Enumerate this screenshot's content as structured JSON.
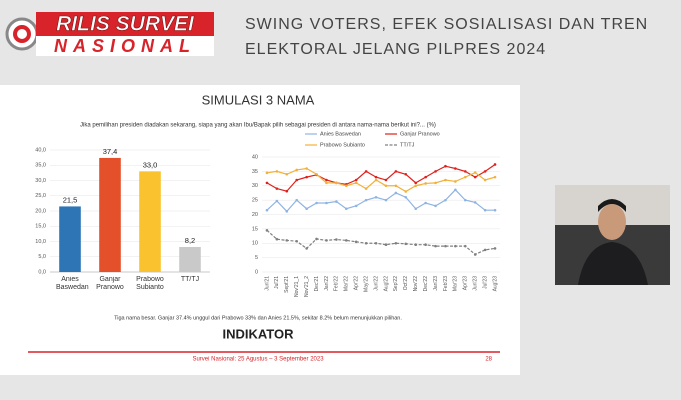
{
  "header": {
    "logo_top": "RILIS SURVEI",
    "logo_bottom": "NASIONAL",
    "title_line1": "SWING VOTERS, EFEK SOSIALISASI DAN TREN",
    "title_line2": "ELEKTORAL JELANG PILPRES 2024"
  },
  "slide": {
    "title": "SIMULASI 3 NAMA",
    "question": "Jika pemilihan presiden diadakan sekarang, siapa yang akan Ibu/Bapak pilih sebagai presiden di antara nama-nama berikut ini?... (%)",
    "note": "Tiga nama besar. Ganjar 37.4% unggul dari Prabowo 33% dan Anies 21.5%, sekitar 8.2% belum menunjukkan pilihan.",
    "brand": "INDIKATOR",
    "footer": "Survei Nasional: 25 Agustus – 3 September 2023",
    "page": "28"
  },
  "chart_data": [
    {
      "type": "bar",
      "categories": [
        "Anies Baswedan",
        "Ganjar Pranowo",
        "Prabowo Subianto",
        "TT/TJ"
      ],
      "values": [
        21.5,
        37.4,
        33.0,
        8.2
      ],
      "value_labels": [
        "21,5",
        "37,4",
        "33,0",
        "8,2"
      ],
      "colors": [
        "#2e75b6",
        "#e3502a",
        "#f9c22e",
        "#c9c9c9"
      ],
      "ylim": [
        0,
        40
      ],
      "yticks": [
        {
          "value": 0,
          "label": "0,0"
        },
        {
          "value": 5,
          "label": "5,0"
        },
        {
          "value": 10,
          "label": "10,0"
        },
        {
          "value": 15,
          "label": "15,0"
        },
        {
          "value": 20,
          "label": "20,0"
        },
        {
          "value": 25,
          "label": "25,0"
        },
        {
          "value": 30,
          "label": "30,0"
        },
        {
          "value": 35,
          "label": "35,0"
        },
        {
          "value": 40,
          "label": "40,0"
        }
      ]
    },
    {
      "type": "line",
      "categories": [
        "Jun'21",
        "Jul'21",
        "Sept'21",
        "Nov'21_1",
        "Nov'21_2",
        "Dec'21",
        "Jan'22",
        "Feb'22",
        "Mar'22",
        "Apr'22",
        "May'22",
        "Jun'22",
        "Aug'22",
        "Sep'22",
        "Oct'22",
        "Nov'22",
        "Dec'22",
        "Jan'23",
        "Feb'23",
        "Mar'23",
        "Apr'23",
        "Jun'23",
        "Jul'23",
        "Aug'23"
      ],
      "series": [
        {
          "name": "Anies Baswedan",
          "color": "#8fb4e3",
          "values": [
            21.5,
            24.7,
            21.1,
            25,
            22,
            24,
            24,
            24.5,
            22,
            23,
            25,
            26,
            25,
            27.5,
            26,
            22,
            24,
            23,
            25,
            28.6,
            25,
            24.2,
            21.5,
            21.5
          ]
        },
        {
          "name": "Ganjar Pranowo",
          "color": "#e0201b",
          "values": [
            31,
            29,
            28.1,
            32,
            33,
            33.8,
            32,
            31,
            30.5,
            32,
            35,
            33,
            32,
            35,
            34,
            31,
            33,
            35,
            36.8,
            36,
            35,
            33,
            35,
            37.4
          ]
        },
        {
          "name": "Prabowo Subianto",
          "color": "#f2b13a",
          "values": [
            34.5,
            35,
            34,
            35.5,
            36,
            34,
            31,
            31,
            30,
            31,
            29,
            32,
            30,
            30,
            28,
            30,
            30.8,
            31,
            32,
            31.5,
            33,
            34.6,
            32,
            33.0
          ]
        },
        {
          "name": "TT/TJ",
          "color": "#808080",
          "dashed": true,
          "values": [
            14.5,
            11.4,
            11,
            10.7,
            8.2,
            11.5,
            11,
            11.3,
            11,
            10.5,
            10,
            10,
            9.5,
            10,
            9.8,
            9.5,
            9.5,
            9,
            9,
            9,
            9,
            6.1,
            7.7,
            8.2
          ]
        }
      ],
      "ylim": [
        0,
        40
      ],
      "yticks": [
        0,
        5,
        10,
        15,
        20,
        25,
        30,
        35,
        40
      ]
    }
  ]
}
